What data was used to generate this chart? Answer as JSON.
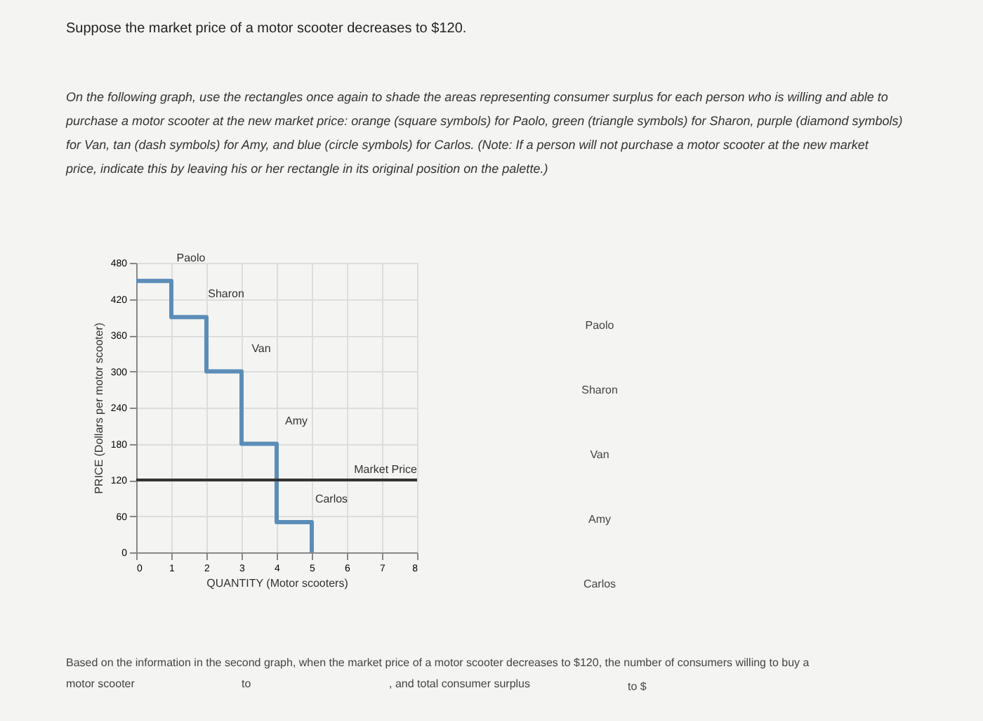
{
  "chart_data": {
    "type": "line",
    "title": "Suppose the market price of a motor scooter decreases to $120.",
    "subtitle": "On the following graph, use the rectangles once again to shade the areas representing consumer surplus for each person who is willing and able to\npurchase a motor scooter at the new market price: orange (square symbols) for Paolo, green (triangle symbols) for Sharon, purple (diamond symbols)\nfor Van, tan (dash symbols) for Amy, and blue (circle symbols) for Carlos. (Note: If a person will not purchase a motor scooter at the new market\nprice, indicate this by leaving his or her rectangle in its original position on the palette.)",
    "xlabel": "QUANTITY (Motor scooters)",
    "ylabel": "PRICE (Dollars per motor scooter)",
    "series": [
      {
        "color": "#5b8db8",
        "x": [
          0,
          1,
          1,
          2,
          2,
          3,
          3,
          4,
          4,
          5,
          5
        ],
        "values": [
          450,
          450,
          390,
          390,
          300,
          300,
          180,
          180,
          50,
          50,
          0
        ]
      }
    ],
    "xlim": [
      0,
      8
    ],
    "xticks": [
      0,
      1,
      2,
      3,
      4,
      5,
      6,
      7,
      8
    ],
    "ylim": [
      0,
      480
    ],
    "yticks": [
      0,
      60,
      120,
      180,
      240,
      300,
      360,
      420,
      480
    ],
    "grid": true,
    "marker": "none",
    "line_style": "solid",
    "ref_lines": [
      {
        "axis": "y",
        "value": 120,
        "label": "Market Price",
        "color": "#333333"
      }
    ],
    "annotations": [
      {
        "text": "Paolo",
        "x": 1,
        "y": 450
      },
      {
        "text": "Sharon",
        "x": 2,
        "y": 390
      },
      {
        "text": "Van",
        "x": 3,
        "y": 300
      },
      {
        "text": "Amy",
        "x": 4,
        "y": 180
      },
      {
        "text": "Carlos",
        "x": 5,
        "y": 50
      },
      "Paolo",
      "Sharon",
      "Van",
      "Amy",
      "Carlos",
      "Based on the information in the second graph, when the market price of a motor scooter decreases to $120, the number of consumers willing to buy a",
      "motor scooter",
      "to",
      ", and total consumer surplus",
      "to $"
    ]
  }
}
